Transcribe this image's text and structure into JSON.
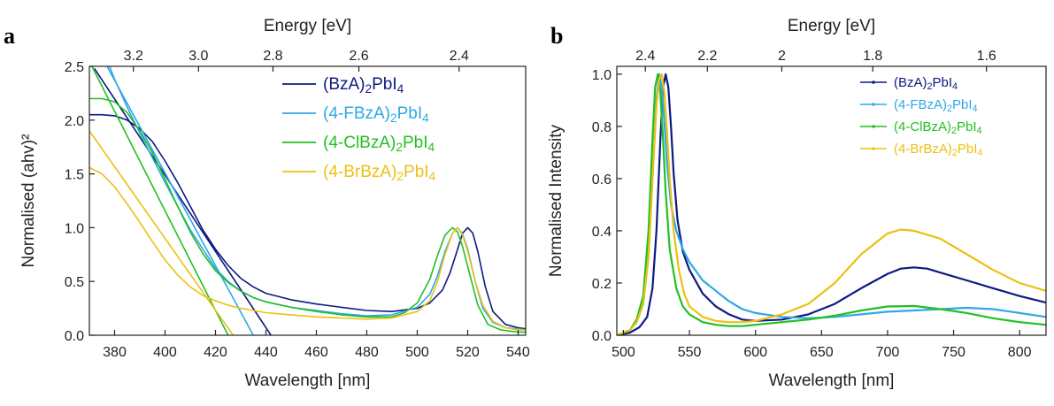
{
  "panels": {
    "a_letter": "a",
    "b_letter": "b"
  },
  "chart_data": [
    {
      "type": "line",
      "panel": "a",
      "xlabel": "Wavelength [nm]",
      "ylabel": "Normalised (ahv)²",
      "top_axis_label": "Energy [eV]",
      "xlim": [
        370,
        543
      ],
      "ylim": [
        0,
        2.5
      ],
      "xticks": [
        380,
        400,
        420,
        440,
        460,
        480,
        500,
        520,
        540
      ],
      "yticks": [
        0.0,
        0.5,
        1.0,
        1.5,
        2.0,
        2.5
      ],
      "top_ticks": [
        "3.2",
        "3.0",
        "2.8",
        "2.6",
        "2.4"
      ],
      "legend_position": "top-right",
      "series": [
        {
          "name": "(BzA)₂PbI₄",
          "label_main": "(BzA)",
          "sub1": "2",
          "label_mid": "PbI",
          "sub2": "4",
          "color": "#0d1a80",
          "fit_line": [
            [
              372,
              2.48
            ],
            [
              442,
              0
            ]
          ],
          "x": [
            370,
            375,
            380,
            385,
            390,
            395,
            400,
            405,
            410,
            415,
            420,
            425,
            430,
            435,
            440,
            450,
            460,
            470,
            480,
            490,
            500,
            505,
            510,
            513,
            516,
            518,
            520,
            522,
            524,
            527,
            530,
            535,
            540,
            543
          ],
          "y": [
            2.05,
            2.05,
            2.04,
            2.0,
            1.92,
            1.8,
            1.62,
            1.42,
            1.2,
            0.98,
            0.8,
            0.65,
            0.53,
            0.45,
            0.39,
            0.33,
            0.29,
            0.26,
            0.23,
            0.22,
            0.25,
            0.3,
            0.42,
            0.58,
            0.8,
            0.95,
            1.0,
            0.95,
            0.78,
            0.45,
            0.22,
            0.1,
            0.07,
            0.06
          ]
        },
        {
          "name": "(4-FBzA)₂PbI₄",
          "label_main": "(4-FBzA)",
          "sub1": "2",
          "label_mid": "PbI",
          "sub2": "4",
          "color": "#2ea8e8",
          "fit_line": [
            [
              377,
              2.5
            ],
            [
              435,
              0
            ]
          ],
          "x": [
            378,
            380,
            385,
            390,
            395,
            400,
            405,
            410,
            415,
            420,
            425,
            430,
            435,
            440,
            450,
            460,
            470,
            480,
            490,
            500,
            505,
            508,
            511,
            514,
            516,
            518,
            520,
            523,
            526,
            530,
            535,
            540,
            543
          ],
          "y": [
            2.5,
            2.38,
            2.12,
            1.88,
            1.65,
            1.42,
            1.2,
            0.98,
            0.8,
            0.62,
            0.5,
            0.41,
            0.35,
            0.31,
            0.26,
            0.23,
            0.2,
            0.18,
            0.19,
            0.26,
            0.38,
            0.55,
            0.78,
            0.95,
            1.0,
            0.94,
            0.8,
            0.5,
            0.25,
            0.12,
            0.07,
            0.06,
            0.05
          ]
        },
        {
          "name": "(4-ClBzA)₂PbI₄",
          "label_main": "(4-ClBzA)",
          "sub1": "2",
          "label_mid": "PbI",
          "sub2": "4",
          "color": "#22c022",
          "fit_line": [
            [
              371,
              2.5
            ],
            [
              425,
              0
            ]
          ],
          "x": [
            370,
            375,
            380,
            385,
            390,
            395,
            400,
            405,
            410,
            415,
            420,
            425,
            430,
            435,
            440,
            450,
            460,
            470,
            480,
            490,
            495,
            500,
            505,
            508,
            511,
            514,
            516,
            518,
            521,
            524,
            528,
            533,
            540,
            543
          ],
          "y": [
            2.2,
            2.2,
            2.17,
            2.07,
            1.9,
            1.7,
            1.45,
            1.2,
            0.96,
            0.76,
            0.6,
            0.49,
            0.41,
            0.35,
            0.31,
            0.26,
            0.22,
            0.19,
            0.17,
            0.17,
            0.21,
            0.3,
            0.52,
            0.74,
            0.93,
            1.0,
            0.96,
            0.82,
            0.55,
            0.28,
            0.1,
            0.05,
            0.03,
            0.03
          ]
        },
        {
          "name": "(4-BrBzA)₂PbI₄",
          "label_main": "(4-BrBzA)",
          "sub1": "2",
          "label_mid": "PbI",
          "sub2": "4",
          "color": "#ecc012",
          "fit_line": [
            [
              370,
              1.9
            ],
            [
              427,
              0
            ]
          ],
          "x": [
            370,
            375,
            380,
            385,
            390,
            395,
            400,
            405,
            410,
            415,
            420,
            425,
            430,
            435,
            440,
            450,
            460,
            470,
            480,
            490,
            500,
            505,
            508,
            511,
            514,
            516,
            518,
            520,
            523,
            526,
            530,
            535,
            540,
            543
          ],
          "y": [
            1.56,
            1.5,
            1.38,
            1.22,
            1.05,
            0.87,
            0.7,
            0.56,
            0.45,
            0.37,
            0.32,
            0.28,
            0.25,
            0.23,
            0.21,
            0.19,
            0.17,
            0.16,
            0.15,
            0.16,
            0.22,
            0.32,
            0.5,
            0.75,
            0.95,
            1.0,
            0.93,
            0.78,
            0.5,
            0.28,
            0.13,
            0.07,
            0.05,
            0.05
          ]
        }
      ]
    },
    {
      "type": "line",
      "panel": "b",
      "xlabel": "Wavelength [nm]",
      "ylabel": "Normalised Intensity",
      "top_axis_label": "Energy [eV]",
      "xlim": [
        495,
        820
      ],
      "ylim": [
        0,
        1.03
      ],
      "xticks": [
        500,
        550,
        600,
        650,
        700,
        750,
        800
      ],
      "yticks": [
        0.0,
        0.2,
        0.4,
        0.6,
        0.8,
        1.0
      ],
      "top_ticks": [
        "2.4",
        "2.2",
        "2",
        "1.8",
        "1.6"
      ],
      "legend_position": "top-right",
      "series": [
        {
          "name": "(BzA)₂PbI₄",
          "label_main": "(BzA)",
          "sub1": "2",
          "label_mid": "PbI",
          "sub2": "4",
          "color": "#0d1a80",
          "x": [
            495,
            505,
            512,
            518,
            522,
            525,
            528,
            530,
            532,
            534,
            536,
            538,
            541,
            545,
            550,
            560,
            570,
            580,
            590,
            600,
            620,
            640,
            660,
            680,
            700,
            710,
            720,
            730,
            740,
            760,
            780,
            800,
            820
          ],
          "y": [
            0.0,
            0.01,
            0.03,
            0.07,
            0.18,
            0.4,
            0.75,
            0.95,
            1.0,
            0.95,
            0.8,
            0.62,
            0.44,
            0.32,
            0.25,
            0.16,
            0.11,
            0.08,
            0.06,
            0.055,
            0.06,
            0.08,
            0.12,
            0.18,
            0.235,
            0.255,
            0.26,
            0.255,
            0.24,
            0.21,
            0.18,
            0.15,
            0.125
          ]
        },
        {
          "name": "(4-FBzA)₂PbI₄",
          "label_main": "(4-FBzA)",
          "sub1": "2",
          "label_mid": "PbI",
          "sub2": "4",
          "color": "#2ea8e8",
          "x": [
            495,
            505,
            510,
            515,
            519,
            522,
            525,
            527,
            529,
            531,
            533,
            536,
            540,
            545,
            550,
            560,
            570,
            580,
            590,
            600,
            620,
            640,
            660,
            680,
            700,
            720,
            740,
            760,
            780,
            800,
            820
          ],
          "y": [
            0.0,
            0.02,
            0.05,
            0.12,
            0.3,
            0.6,
            0.9,
            1.0,
            0.95,
            0.82,
            0.66,
            0.5,
            0.4,
            0.33,
            0.28,
            0.21,
            0.17,
            0.13,
            0.1,
            0.085,
            0.07,
            0.065,
            0.07,
            0.08,
            0.09,
            0.095,
            0.1,
            0.105,
            0.1,
            0.085,
            0.07
          ]
        },
        {
          "name": "(4-ClBzA)₂PbI₄",
          "label_main": "(4-ClBzA)",
          "sub1": "2",
          "label_mid": "PbI",
          "sub2": "4",
          "color": "#22c022",
          "x": [
            495,
            505,
            510,
            515,
            519,
            522,
            524,
            526,
            528,
            530,
            532,
            535,
            540,
            545,
            550,
            560,
            570,
            580,
            590,
            600,
            620,
            640,
            660,
            680,
            700,
            720,
            740,
            760,
            780,
            800,
            820
          ],
          "y": [
            0.0,
            0.02,
            0.06,
            0.15,
            0.4,
            0.75,
            0.95,
            1.0,
            0.93,
            0.75,
            0.55,
            0.33,
            0.18,
            0.11,
            0.08,
            0.05,
            0.04,
            0.035,
            0.035,
            0.04,
            0.05,
            0.06,
            0.075,
            0.095,
            0.11,
            0.112,
            0.1,
            0.085,
            0.065,
            0.05,
            0.04
          ]
        },
        {
          "name": "(4-BrBzA)₂PbI₄",
          "label_main": "(4-BrBzA)",
          "sub1": "2",
          "label_mid": "PbI",
          "sub2": "4",
          "color": "#ecc012",
          "x": [
            495,
            505,
            510,
            515,
            519,
            522,
            525,
            527,
            529,
            531,
            533,
            535,
            538,
            542,
            546,
            550,
            560,
            570,
            580,
            590,
            600,
            620,
            640,
            660,
            680,
            700,
            710,
            720,
            740,
            760,
            780,
            800,
            820
          ],
          "y": [
            0.0,
            0.02,
            0.05,
            0.12,
            0.3,
            0.6,
            0.88,
            0.98,
            1.0,
            0.93,
            0.78,
            0.6,
            0.4,
            0.25,
            0.16,
            0.11,
            0.07,
            0.055,
            0.05,
            0.05,
            0.055,
            0.08,
            0.12,
            0.2,
            0.31,
            0.39,
            0.405,
            0.4,
            0.37,
            0.31,
            0.25,
            0.2,
            0.17
          ]
        }
      ]
    }
  ]
}
